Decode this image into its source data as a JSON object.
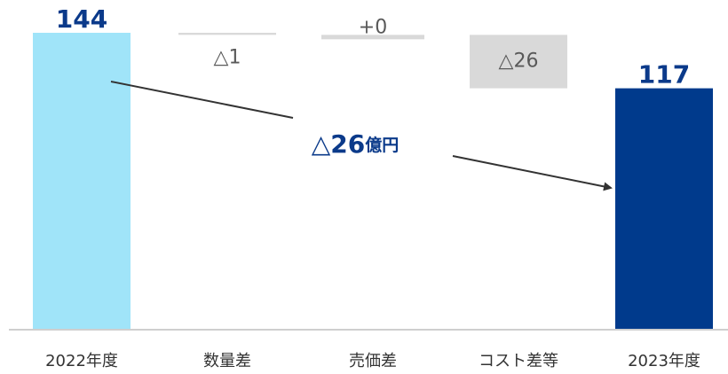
{
  "chart_data": {
    "type": "waterfall",
    "categories": [
      "2022年度",
      "数量差",
      "売価差",
      "コスト差等",
      "2023年度"
    ],
    "values": [
      144,
      -1,
      0,
      -26,
      117
    ],
    "value_labels": [
      "144",
      "△1",
      "+0",
      "△26",
      "117"
    ],
    "kinds": [
      "total",
      "delta",
      "delta",
      "delta",
      "total"
    ],
    "colors": {
      "start": "#a0e4f9",
      "delta": "#d9d9d9",
      "end": "#003a8c"
    },
    "annotation": {
      "value": "△26",
      "unit": "億円"
    }
  }
}
